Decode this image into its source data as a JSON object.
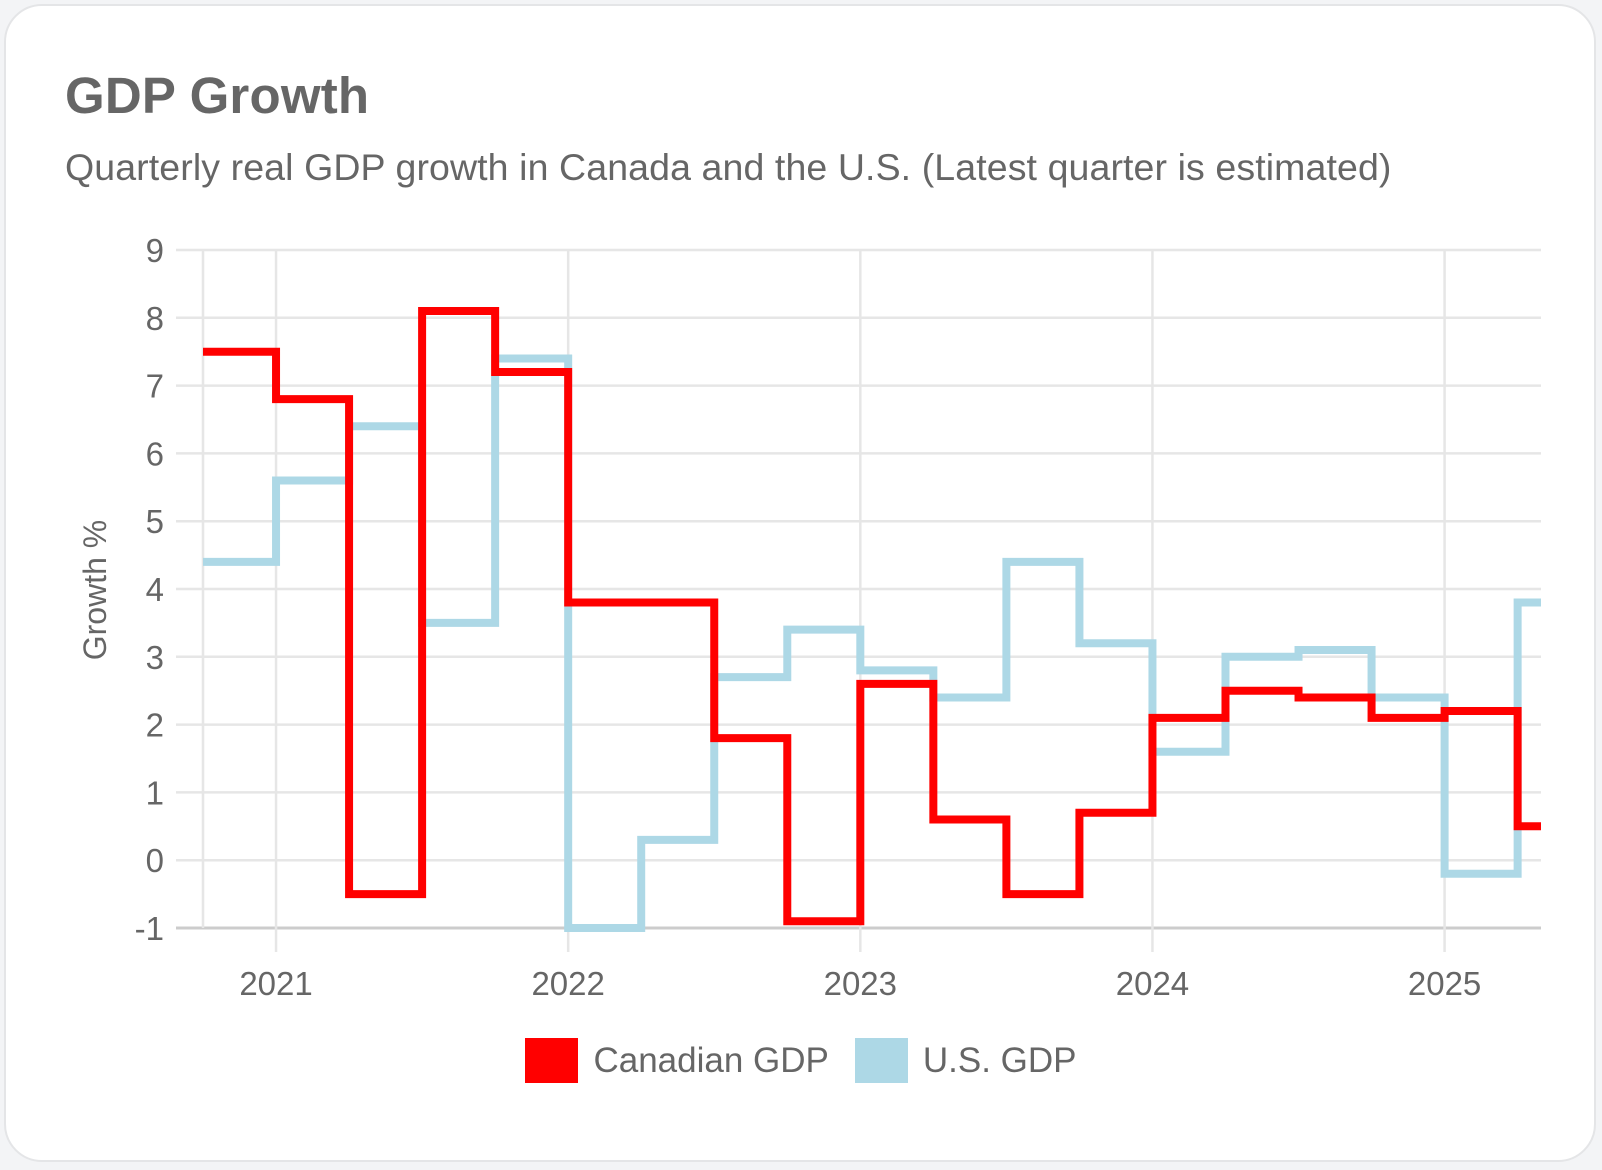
{
  "card": {
    "title": "GDP Growth",
    "subtitle": "Quarterly real GDP growth in Canada and the U.S. (Latest quarter is estimated)"
  },
  "colors": {
    "canada": "#ff0000",
    "us": "#add8e6",
    "grid": "#e6e6e6",
    "axis": "#cccccc",
    "text": "#666666"
  },
  "chart_data": {
    "type": "line",
    "style": "stepped",
    "title": "GDP Growth",
    "subtitle": "Quarterly real GDP growth in Canada and the U.S. (Latest quarter is estimated)",
    "xlabel": "",
    "ylabel": "Growth %",
    "x": [
      "Q4 2020",
      "Q1 2021",
      "Q2 2021",
      "Q3 2021",
      "Q4 2021",
      "Q1 2022",
      "Q2 2022",
      "Q3 2022",
      "Q4 2022",
      "Q1 2023",
      "Q2 2023",
      "Q3 2023",
      "Q4 2023",
      "Q1 2024",
      "Q2 2024",
      "Q3 2024",
      "Q4 2024",
      "Q1 2025",
      "Q2 2025"
    ],
    "x_numeric": [
      2020.75,
      2021.0,
      2021.25,
      2021.5,
      2021.75,
      2022.0,
      2022.25,
      2022.5,
      2022.75,
      2023.0,
      2023.25,
      2023.5,
      2023.75,
      2024.0,
      2024.25,
      2024.5,
      2024.75,
      2025.0,
      2025.25
    ],
    "xlim": [
      2020.75,
      2025.33
    ],
    "xticks": [
      2021,
      2022,
      2023,
      2024,
      2025
    ],
    "xtick_labels": [
      "2021",
      "2022",
      "2023",
      "2024",
      "2025"
    ],
    "ylim": [
      -1,
      9
    ],
    "yticks": [
      9,
      8,
      7,
      6,
      5,
      4,
      3,
      2,
      1,
      0,
      -1
    ],
    "ytick_labels": [
      "9",
      "8",
      "7",
      "6",
      "5",
      "4",
      "3",
      "2",
      "1",
      "0",
      "-1"
    ],
    "grid": true,
    "legend_position": "bottom",
    "series": [
      {
        "name": "Canadian GDP",
        "color": "#ff0000",
        "values": [
          7.5,
          6.8,
          -0.5,
          8.1,
          7.2,
          3.8,
          3.8,
          1.8,
          -0.9,
          2.6,
          0.6,
          -0.5,
          0.7,
          2.1,
          2.5,
          2.4,
          2.1,
          2.2,
          0.5
        ]
      },
      {
        "name": "U.S. GDP",
        "color": "#add8e6",
        "values": [
          4.4,
          5.6,
          6.4,
          3.5,
          7.4,
          -1.0,
          0.3,
          2.7,
          3.4,
          2.8,
          2.4,
          4.4,
          3.2,
          1.6,
          3.0,
          3.1,
          2.4,
          -0.2,
          3.8
        ]
      }
    ]
  },
  "legend": {
    "items": [
      {
        "label": "Canadian GDP",
        "color": "#ff0000"
      },
      {
        "label": "U.S. GDP",
        "color": "#add8e6"
      }
    ]
  }
}
